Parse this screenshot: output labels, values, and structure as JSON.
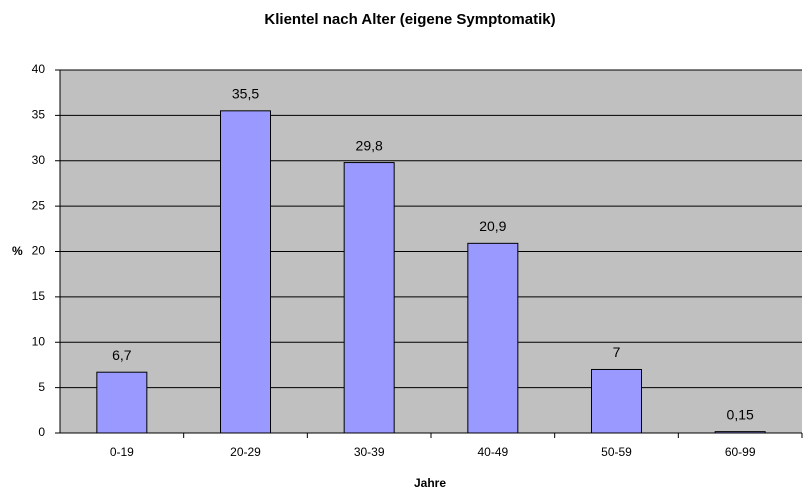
{
  "chart_data": {
    "type": "bar",
    "title": "Klientel nach Alter (eigene Symptomatik)",
    "xlabel": "Jahre",
    "ylabel": "%",
    "categories": [
      "0-19",
      "20-29",
      "30-39",
      "40-49",
      "50-59",
      "60-99"
    ],
    "values": [
      6.7,
      35.5,
      29.8,
      20.9,
      7,
      0.15
    ],
    "value_labels": [
      "6,7",
      "35,5",
      "29,8",
      "20,9",
      "7",
      "0,15"
    ],
    "color": "#9999ff",
    "plot_background": "#c0c0c0",
    "ylim": [
      0,
      40
    ],
    "yticks": [
      0,
      5,
      10,
      15,
      20,
      25,
      30,
      35,
      40
    ],
    "grid": true
  }
}
